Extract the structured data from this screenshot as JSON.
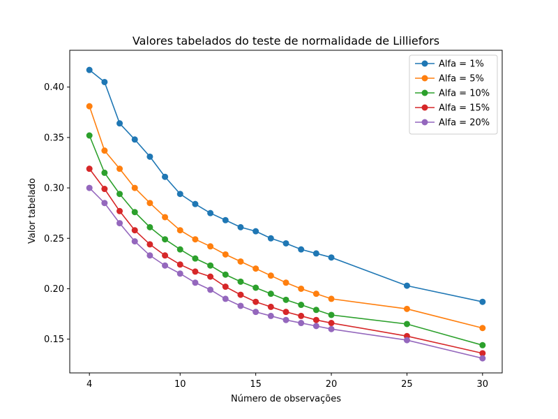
{
  "chart_data": {
    "type": "line",
    "title": "Valores tabelados do teste de normalidade de Lilliefors",
    "xlabel": "Número de observações",
    "ylabel": "Valor tabelado",
    "xlim": [
      2.7,
      31.3
    ],
    "ylim": [
      0.1165,
      0.4365
    ],
    "xticks": [
      4,
      10,
      15,
      20,
      25,
      30
    ],
    "yticks": [
      0.15,
      0.2,
      0.25,
      0.3,
      0.35,
      0.4
    ],
    "ytick_labels": [
      "0.15",
      "0.20",
      "0.25",
      "0.30",
      "0.35",
      "0.40"
    ],
    "grid": false,
    "legend_position": "top-right",
    "x": [
      4,
      5,
      6,
      7,
      8,
      9,
      10,
      11,
      12,
      13,
      14,
      15,
      16,
      17,
      18,
      19,
      20,
      25,
      30
    ],
    "series": [
      {
        "name": "Alfa = 1%",
        "color": "#1f77b4",
        "values": [
          0.417,
          0.405,
          0.364,
          0.348,
          0.331,
          0.311,
          0.294,
          0.284,
          0.275,
          0.268,
          0.261,
          0.257,
          0.25,
          0.245,
          0.239,
          0.235,
          0.231,
          0.203,
          0.187
        ]
      },
      {
        "name": "Alfa = 5%",
        "color": "#ff7f0e",
        "values": [
          0.381,
          0.337,
          0.319,
          0.3,
          0.285,
          0.271,
          0.258,
          0.249,
          0.242,
          0.234,
          0.227,
          0.22,
          0.213,
          0.206,
          0.2,
          0.195,
          0.19,
          0.18,
          0.161
        ]
      },
      {
        "name": "Alfa = 10%",
        "color": "#2ca02c",
        "values": [
          0.352,
          0.315,
          0.294,
          0.276,
          0.261,
          0.249,
          0.239,
          0.23,
          0.223,
          0.214,
          0.207,
          0.201,
          0.195,
          0.189,
          0.184,
          0.179,
          0.174,
          0.165,
          0.144
        ]
      },
      {
        "name": "Alfa = 15%",
        "color": "#d62728",
        "values": [
          0.319,
          0.299,
          0.277,
          0.258,
          0.244,
          0.233,
          0.224,
          0.217,
          0.212,
          0.202,
          0.194,
          0.187,
          0.182,
          0.177,
          0.173,
          0.169,
          0.166,
          0.153,
          0.136
        ]
      },
      {
        "name": "Alfa = 20%",
        "color": "#9467bd",
        "values": [
          0.3,
          0.285,
          0.265,
          0.247,
          0.233,
          0.223,
          0.215,
          0.206,
          0.199,
          0.19,
          0.183,
          0.177,
          0.173,
          0.169,
          0.166,
          0.163,
          0.16,
          0.149,
          0.131
        ]
      }
    ]
  }
}
